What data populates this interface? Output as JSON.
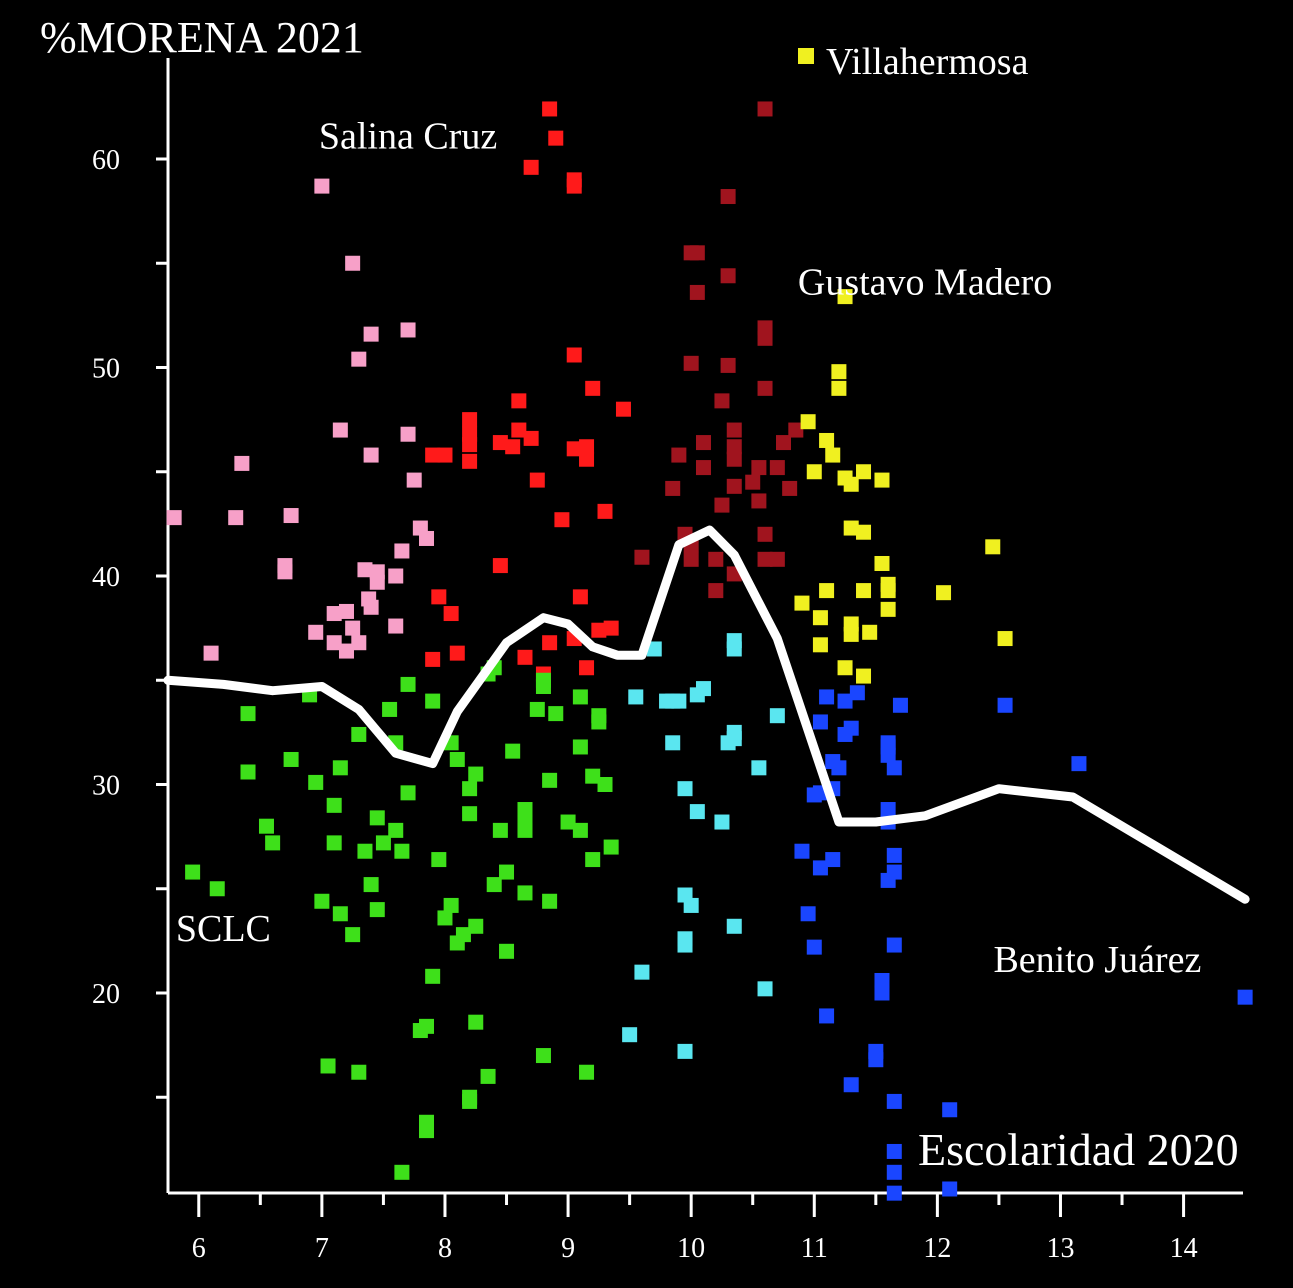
{
  "chart_data": {
    "type": "scatter",
    "title": "%MORENA 2021",
    "xlabel": "Escolaridad 2020",
    "ylabel": "%MORENA 2021",
    "xlim": [
      5.75,
      14.5
    ],
    "ylim": [
      9.5,
      65
    ],
    "x_ticks": [
      "6",
      "7",
      "8",
      "9",
      "10",
      "11",
      "12",
      "13",
      "14"
    ],
    "y_ticks": [
      "20",
      "30",
      "40",
      "50",
      "60"
    ],
    "y_minor_ticks": [
      15,
      25,
      35,
      45,
      55
    ],
    "grid": false,
    "legend": [
      {
        "name": "Villahermosa",
        "color": "#f0f020",
        "position": "top-right"
      }
    ],
    "annotations": [
      {
        "text": "Salina Cruz",
        "x": 7.7,
        "y": 60.5
      },
      {
        "text": "Gustavo Madero",
        "x": 11.9,
        "y": 53.5
      },
      {
        "text": "SCLC",
        "x": 6.2,
        "y": 22.5
      },
      {
        "text": "Benito Juárez",
        "x": 13.3,
        "y": 21.0
      }
    ],
    "trend_line": {
      "color": "#ffffff",
      "x": [
        5.75,
        6.2,
        6.6,
        7.0,
        7.3,
        7.6,
        7.9,
        8.1,
        8.5,
        8.8,
        9.0,
        9.2,
        9.4,
        9.6,
        9.9,
        10.15,
        10.35,
        10.7,
        11.2,
        11.5,
        11.9,
        12.5,
        13.1,
        14.5
      ],
      "y": [
        35.0,
        34.8,
        34.5,
        34.7,
        33.6,
        31.5,
        31.0,
        33.5,
        36.8,
        38.0,
        37.7,
        36.6,
        36.2,
        36.2,
        41.5,
        42.2,
        41.0,
        37.0,
        28.2,
        28.2,
        28.5,
        29.8,
        29.4,
        24.5
      ]
    },
    "series": [
      {
        "name": "Salina Cruz",
        "color": "#f7a0c8",
        "points": [
          [
            5.8,
            42.8
          ],
          [
            6.1,
            36.3
          ],
          [
            6.3,
            42.8
          ],
          [
            6.35,
            45.4
          ],
          [
            6.75,
            42.9
          ],
          [
            6.7,
            40.5
          ],
          [
            6.7,
            40.2
          ],
          [
            6.95,
            37.3
          ],
          [
            7.0,
            58.7
          ],
          [
            7.1,
            38.2
          ],
          [
            7.1,
            36.8
          ],
          [
            7.2,
            36.4
          ],
          [
            7.2,
            38.3
          ],
          [
            7.25,
            37.5
          ],
          [
            7.15,
            47.0
          ],
          [
            7.25,
            55.0
          ],
          [
            7.3,
            50.4
          ],
          [
            7.3,
            36.8
          ],
          [
            7.4,
            51.6
          ],
          [
            7.4,
            45.8
          ],
          [
            7.4,
            38.5
          ],
          [
            7.45,
            39.7
          ],
          [
            7.45,
            40.2
          ],
          [
            7.35,
            40.3
          ],
          [
            7.6,
            37.6
          ],
          [
            7.6,
            40.0
          ],
          [
            7.65,
            41.2
          ],
          [
            7.7,
            51.8
          ],
          [
            7.7,
            46.8
          ],
          [
            7.75,
            44.6
          ],
          [
            7.8,
            42.3
          ],
          [
            7.85,
            41.8
          ],
          [
            7.38,
            38.9
          ]
        ]
      },
      {
        "name": "series-red",
        "color": "#ff1a1a",
        "points": [
          [
            7.9,
            36.0
          ],
          [
            7.9,
            45.8
          ],
          [
            7.95,
            39.0
          ],
          [
            8.0,
            45.8
          ],
          [
            8.05,
            38.2
          ],
          [
            8.1,
            36.3
          ],
          [
            8.2,
            47.5
          ],
          [
            8.2,
            46.8
          ],
          [
            8.2,
            45.5
          ],
          [
            8.2,
            46.3
          ],
          [
            8.45,
            40.5
          ],
          [
            8.45,
            46.4
          ],
          [
            8.55,
            46.2
          ],
          [
            8.6,
            48.4
          ],
          [
            8.6,
            47.0
          ],
          [
            8.65,
            36.1
          ],
          [
            8.7,
            46.6
          ],
          [
            8.75,
            44.6
          ],
          [
            8.8,
            35.3
          ],
          [
            8.85,
            62.4
          ],
          [
            8.9,
            61.0
          ],
          [
            8.85,
            36.8
          ],
          [
            8.7,
            59.6
          ],
          [
            8.95,
            42.7
          ],
          [
            9.05,
            46.1
          ],
          [
            9.05,
            37.0
          ],
          [
            9.05,
            59.0
          ],
          [
            9.05,
            58.7
          ],
          [
            9.05,
            50.6
          ],
          [
            9.1,
            39.0
          ],
          [
            9.15,
            46.2
          ],
          [
            9.15,
            35.6
          ],
          [
            9.15,
            45.6
          ],
          [
            9.2,
            49.0
          ],
          [
            9.25,
            37.4
          ],
          [
            9.3,
            43.1
          ],
          [
            9.35,
            37.5
          ],
          [
            9.45,
            48.0
          ]
        ]
      },
      {
        "name": "series-darkred",
        "color": "#a0141e",
        "points": [
          [
            9.6,
            40.9
          ],
          [
            9.85,
            44.2
          ],
          [
            9.9,
            45.8
          ],
          [
            9.95,
            42.0
          ],
          [
            10.0,
            41.5
          ],
          [
            10.0,
            55.5
          ],
          [
            10.05,
            55.5
          ],
          [
            10.05,
            53.6
          ],
          [
            10.0,
            50.2
          ],
          [
            10.1,
            46.4
          ],
          [
            10.1,
            45.2
          ],
          [
            10.2,
            39.3
          ],
          [
            10.25,
            48.4
          ],
          [
            10.25,
            43.4
          ],
          [
            10.3,
            58.2
          ],
          [
            10.3,
            54.4
          ],
          [
            10.3,
            50.1
          ],
          [
            10.35,
            47.0
          ],
          [
            10.35,
            46.2
          ],
          [
            10.35,
            45.6
          ],
          [
            10.35,
            44.3
          ],
          [
            10.35,
            40.1
          ],
          [
            10.5,
            44.5
          ],
          [
            10.55,
            45.2
          ],
          [
            10.55,
            43.6
          ],
          [
            10.6,
            62.4
          ],
          [
            10.6,
            51.9
          ],
          [
            10.6,
            51.4
          ],
          [
            10.6,
            49.0
          ],
          [
            10.6,
            42.0
          ],
          [
            10.6,
            40.8
          ],
          [
            10.7,
            45.2
          ],
          [
            10.75,
            46.4
          ],
          [
            10.8,
            44.2
          ],
          [
            10.85,
            47.0
          ],
          [
            10.7,
            40.8
          ],
          [
            10.0,
            40.8
          ],
          [
            10.2,
            40.8
          ]
        ]
      },
      {
        "name": "Villahermosa",
        "color": "#f0f020",
        "points": [
          [
            10.9,
            38.7
          ],
          [
            10.95,
            47.4
          ],
          [
            11.0,
            45.0
          ],
          [
            11.1,
            46.5
          ],
          [
            11.15,
            45.8
          ],
          [
            11.1,
            39.3
          ],
          [
            11.05,
            38.0
          ],
          [
            11.05,
            36.7
          ],
          [
            11.2,
            49.8
          ],
          [
            11.2,
            49.0
          ],
          [
            11.25,
            53.4
          ],
          [
            11.25,
            44.7
          ],
          [
            11.25,
            35.6
          ],
          [
            11.3,
            44.4
          ],
          [
            11.3,
            42.3
          ],
          [
            11.3,
            37.7
          ],
          [
            11.3,
            37.2
          ],
          [
            11.4,
            42.1
          ],
          [
            11.4,
            45.0
          ],
          [
            11.4,
            39.3
          ],
          [
            11.45,
            37.3
          ],
          [
            11.4,
            35.2
          ],
          [
            11.55,
            44.6
          ],
          [
            11.55,
            40.6
          ],
          [
            11.6,
            39.6
          ],
          [
            11.6,
            39.3
          ],
          [
            11.6,
            38.4
          ],
          [
            12.05,
            39.2
          ],
          [
            12.45,
            41.4
          ],
          [
            12.55,
            37.0
          ]
        ]
      },
      {
        "name": "series-green",
        "color": "#3ee01a",
        "points": [
          [
            5.95,
            25.8
          ],
          [
            6.15,
            25.0
          ],
          [
            6.4,
            33.4
          ],
          [
            6.4,
            30.6
          ],
          [
            6.55,
            28.0
          ],
          [
            6.6,
            27.2
          ],
          [
            6.75,
            31.2
          ],
          [
            6.9,
            34.3
          ],
          [
            6.95,
            30.1
          ],
          [
            7.0,
            24.4
          ],
          [
            7.05,
            16.5
          ],
          [
            7.1,
            29.0
          ],
          [
            7.1,
            27.2
          ],
          [
            7.15,
            30.8
          ],
          [
            7.15,
            23.8
          ],
          [
            7.25,
            22.8
          ],
          [
            7.3,
            16.2
          ],
          [
            7.3,
            32.4
          ],
          [
            7.35,
            26.8
          ],
          [
            7.4,
            25.2
          ],
          [
            7.45,
            24.0
          ],
          [
            7.45,
            28.4
          ],
          [
            7.5,
            27.2
          ],
          [
            7.55,
            33.6
          ],
          [
            7.6,
            32.0
          ],
          [
            7.6,
            27.8
          ],
          [
            7.65,
            26.8
          ],
          [
            7.65,
            11.4
          ],
          [
            7.7,
            29.6
          ],
          [
            7.7,
            34.8
          ],
          [
            7.8,
            18.2
          ],
          [
            7.85,
            18.4
          ],
          [
            7.85,
            13.8
          ],
          [
            7.85,
            13.4
          ],
          [
            7.9,
            20.8
          ],
          [
            7.9,
            34.0
          ],
          [
            7.95,
            26.4
          ],
          [
            8.0,
            23.6
          ],
          [
            8.05,
            24.2
          ],
          [
            8.05,
            32.0
          ],
          [
            8.1,
            22.4
          ],
          [
            8.1,
            31.2
          ],
          [
            8.15,
            22.8
          ],
          [
            8.2,
            29.8
          ],
          [
            8.2,
            28.6
          ],
          [
            8.25,
            30.5
          ],
          [
            8.25,
            23.2
          ],
          [
            8.25,
            18.6
          ],
          [
            8.2,
            15.0
          ],
          [
            8.2,
            14.8
          ],
          [
            8.35,
            16.0
          ],
          [
            8.35,
            35.3
          ],
          [
            8.4,
            35.6
          ],
          [
            8.4,
            25.2
          ],
          [
            8.45,
            27.8
          ],
          [
            8.5,
            25.8
          ],
          [
            8.5,
            22.0
          ],
          [
            8.55,
            31.6
          ],
          [
            8.65,
            28.8
          ],
          [
            8.65,
            28.2
          ],
          [
            8.65,
            27.8
          ],
          [
            8.65,
            24.8
          ],
          [
            8.75,
            33.6
          ],
          [
            8.8,
            35.0
          ],
          [
            8.8,
            34.7
          ],
          [
            8.8,
            17.0
          ],
          [
            8.85,
            30.2
          ],
          [
            8.85,
            24.4
          ],
          [
            8.9,
            33.4
          ],
          [
            9.0,
            28.2
          ],
          [
            9.1,
            27.8
          ],
          [
            9.1,
            34.2
          ],
          [
            9.1,
            31.8
          ],
          [
            9.15,
            16.2
          ],
          [
            9.2,
            30.4
          ],
          [
            9.2,
            26.4
          ],
          [
            9.25,
            33.0
          ],
          [
            9.25,
            33.3
          ],
          [
            9.3,
            30.0
          ],
          [
            9.35,
            27.0
          ]
        ]
      },
      {
        "name": "series-cyan",
        "color": "#5ae6f0",
        "points": [
          [
            9.5,
            18.0
          ],
          [
            9.55,
            34.2
          ],
          [
            9.6,
            21.0
          ],
          [
            9.7,
            36.5
          ],
          [
            9.8,
            34.0
          ],
          [
            9.85,
            32.0
          ],
          [
            9.85,
            34.0
          ],
          [
            9.9,
            34.0
          ],
          [
            9.95,
            29.8
          ],
          [
            9.95,
            24.7
          ],
          [
            9.95,
            22.6
          ],
          [
            9.95,
            22.3
          ],
          [
            9.95,
            17.2
          ],
          [
            10.0,
            24.2
          ],
          [
            10.05,
            28.7
          ],
          [
            10.05,
            34.3
          ],
          [
            10.1,
            34.6
          ],
          [
            10.25,
            28.2
          ],
          [
            10.3,
            32.0
          ],
          [
            10.35,
            32.5
          ],
          [
            10.35,
            36.9
          ],
          [
            10.35,
            36.5
          ],
          [
            10.35,
            23.2
          ],
          [
            10.55,
            30.8
          ],
          [
            10.6,
            20.2
          ],
          [
            10.7,
            33.3
          ],
          [
            10.35,
            32.2
          ]
        ]
      },
      {
        "name": "Benito Juárez",
        "color": "#1a46ff",
        "points": [
          [
            10.9,
            26.8
          ],
          [
            10.95,
            23.8
          ],
          [
            11.0,
            29.5
          ],
          [
            11.0,
            22.2
          ],
          [
            11.05,
            33.0
          ],
          [
            11.05,
            29.6
          ],
          [
            11.05,
            26.0
          ],
          [
            11.1,
            34.2
          ],
          [
            11.1,
            18.9
          ],
          [
            11.15,
            31.1
          ],
          [
            11.15,
            29.8
          ],
          [
            11.2,
            30.8
          ],
          [
            11.15,
            26.4
          ],
          [
            11.25,
            34.0
          ],
          [
            11.25,
            32.4
          ],
          [
            11.3,
            32.7
          ],
          [
            11.3,
            15.6
          ],
          [
            11.35,
            34.4
          ],
          [
            11.5,
            17.2
          ],
          [
            11.5,
            16.8
          ],
          [
            11.55,
            20.0
          ],
          [
            11.55,
            20.6
          ],
          [
            11.6,
            28.8
          ],
          [
            11.6,
            25.4
          ],
          [
            11.6,
            28.2
          ],
          [
            11.6,
            31.8
          ],
          [
            11.6,
            32.0
          ],
          [
            11.6,
            31.4
          ],
          [
            11.65,
            30.8
          ],
          [
            11.65,
            25.8
          ],
          [
            11.65,
            26.6
          ],
          [
            11.65,
            22.3
          ],
          [
            11.65,
            14.8
          ],
          [
            11.65,
            12.4
          ],
          [
            11.65,
            11.4
          ],
          [
            11.65,
            10.4
          ],
          [
            11.7,
            33.8
          ],
          [
            12.1,
            14.4
          ],
          [
            12.1,
            10.6
          ],
          [
            12.55,
            33.8
          ],
          [
            13.15,
            31.0
          ],
          [
            14.5,
            19.8
          ]
        ]
      }
    ]
  }
}
